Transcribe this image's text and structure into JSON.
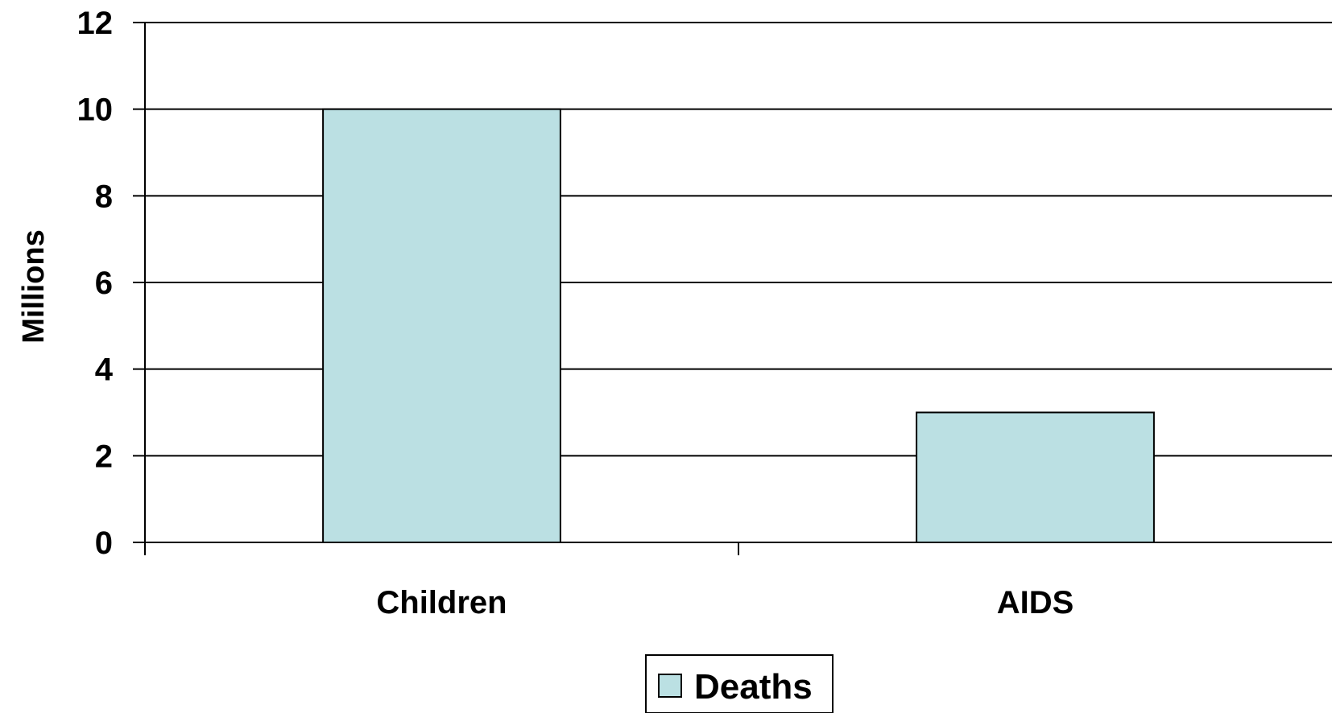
{
  "chart_data": {
    "type": "bar",
    "categories": [
      "Children",
      "AIDS"
    ],
    "series": [
      {
        "name": "Deaths",
        "values": [
          10,
          3
        ],
        "color": "#bbe0e3"
      }
    ],
    "title": "",
    "xlabel": "",
    "ylabel": "Millions",
    "ylim": [
      0,
      12
    ],
    "yticks": [
      "0",
      "2",
      "4",
      "6",
      "8",
      "10",
      "12"
    ],
    "grid": true,
    "legend_position": "bottom-center"
  },
  "colors": {
    "bar_fill": "#bbe0e3",
    "bar_stroke": "#000000",
    "grid": "#000000"
  }
}
